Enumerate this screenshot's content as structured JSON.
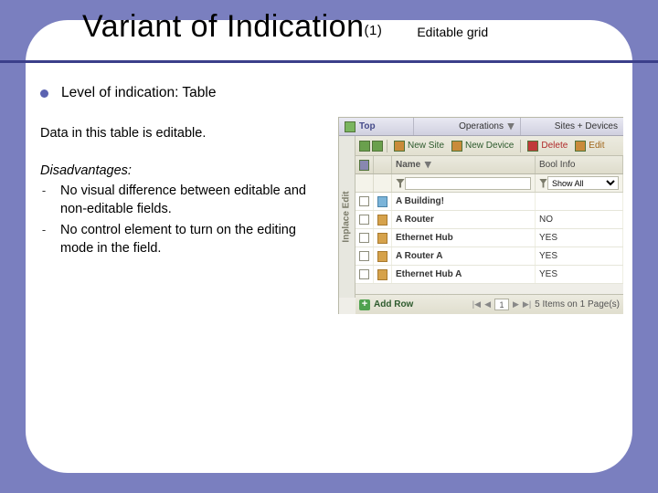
{
  "title": "Variant of Indication",
  "title_suffix": "(1)",
  "title_tag": "Editable grid",
  "bullet": "Level of indication: Table",
  "paragraph": "Data in this table is editable.",
  "disadvantages_label": "Disadvantages:",
  "disadvantages": [
    "No visual difference between editable and non-editable fields.",
    "No control element to turn on the editing mode in the field."
  ],
  "panel": {
    "top": {
      "top_label": "Top",
      "operations_label": "Operations",
      "sites_devices_label": "Sites + Devices"
    },
    "side_label": "Inplace Edit",
    "toolbar": {
      "new_site": "New Site",
      "new_device": "New Device",
      "delete": "Delete",
      "edit": "Edit"
    },
    "columns": {
      "name": "Name",
      "bool": "Bool Info"
    },
    "filter": {
      "name_value": "",
      "bool_selected": "Show All"
    },
    "rows": [
      {
        "name": "A Building!",
        "bool": "",
        "type": "site"
      },
      {
        "name": "A Router",
        "bool": "NO",
        "type": "device"
      },
      {
        "name": "Ethernet Hub",
        "bool": "YES",
        "type": "device"
      },
      {
        "name": "A Router A",
        "bool": "YES",
        "type": "device"
      },
      {
        "name": "Ethernet Hub A",
        "bool": "YES",
        "type": "device"
      }
    ],
    "footer": {
      "add_row": "Add Row",
      "page": "1",
      "summary": "5 Items on 1 Page(s)"
    }
  },
  "colors": {
    "slide_bg": "#7a7fbf",
    "accent": "#3b3f8a",
    "green": "#2d5a2d",
    "red": "#b02a2a"
  }
}
